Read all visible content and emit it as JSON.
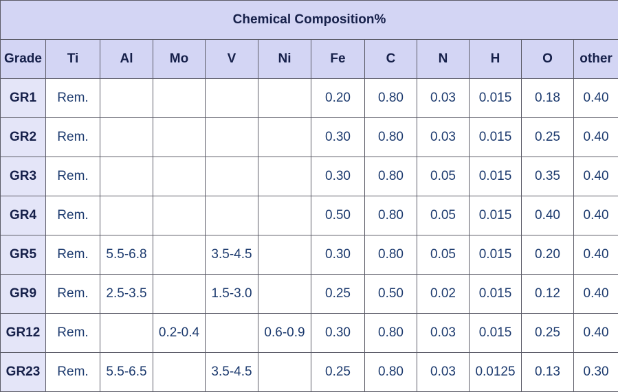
{
  "table": {
    "title": "Chemical Composition%",
    "columns": [
      "Grade",
      "Ti",
      "Al",
      "Mo",
      "V",
      "Ni",
      "Fe",
      "C",
      "N",
      "H",
      "O",
      "other"
    ],
    "rows": [
      [
        "GR1",
        "Rem.",
        null,
        null,
        null,
        null,
        "0.20",
        "0.80",
        "0.03",
        "0.015",
        "0.18",
        "0.40"
      ],
      [
        "GR2",
        "Rem.",
        null,
        null,
        null,
        null,
        "0.30",
        "0.80",
        "0.03",
        "0.015",
        "0.25",
        "0.40"
      ],
      [
        "GR3",
        "Rem.",
        null,
        null,
        null,
        null,
        "0.30",
        "0.80",
        "0.05",
        "0.015",
        "0.35",
        "0.40"
      ],
      [
        "GR4",
        "Rem.",
        null,
        null,
        null,
        null,
        "0.50",
        "0.80",
        "0.05",
        "0.015",
        "0.40",
        "0.40"
      ],
      [
        "GR5",
        "Rem.",
        "5.5-6.8",
        null,
        "3.5-4.5",
        null,
        "0.30",
        "0.80",
        "0.05",
        "0.015",
        "0.20",
        "0.40"
      ],
      [
        "GR9",
        "Rem.",
        "2.5-3.5",
        null,
        "1.5-3.0",
        null,
        "0.25",
        "0.50",
        "0.02",
        "0.015",
        "0.12",
        "0.40"
      ],
      [
        "GR12",
        "Rem.",
        null,
        "0.2-0.4",
        null,
        "0.6-0.9",
        "0.30",
        "0.80",
        "0.03",
        "0.015",
        "0.25",
        "0.40"
      ],
      [
        "GR23",
        "Rem.",
        "5.5-6.5",
        null,
        "3.5-4.5",
        null,
        "0.25",
        "0.80",
        "0.03",
        "0.0125",
        "0.13",
        "0.30"
      ]
    ]
  }
}
